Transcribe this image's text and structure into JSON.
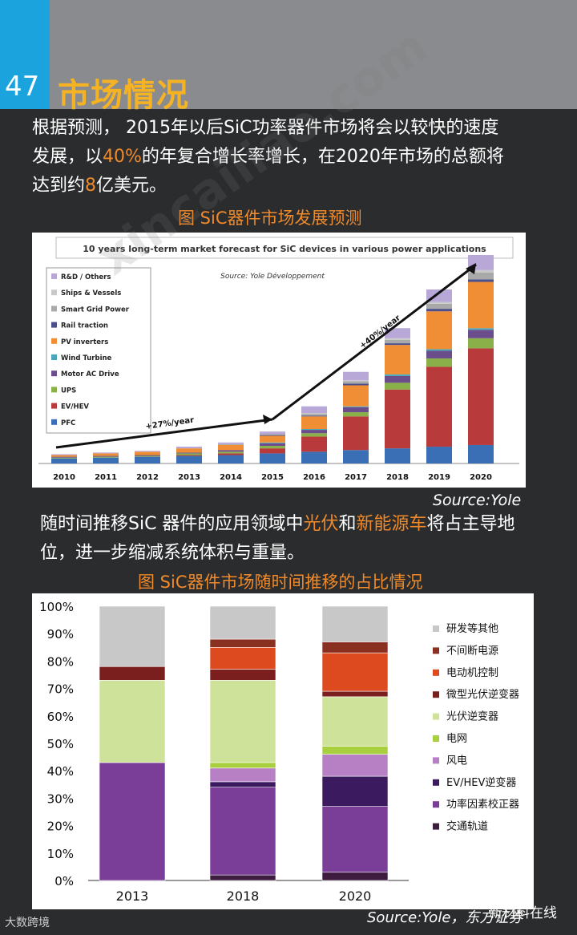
{
  "header": {
    "page_number": "47",
    "title": "市场情况"
  },
  "para1": {
    "line1": "根据预测， 2015年以后SiC功率器件市场将会以较快的速度",
    "line2_a": "发展，以",
    "line2_hl": "40%",
    "line2_b": "的年复合增长率增长，在2020年市场的总额将",
    "line3_a": "达到约",
    "line3_hl": "8",
    "line3_b": "亿美元。"
  },
  "caption1": "图 SiC器件市场发展预测",
  "source1": "Source:Yole",
  "para2": {
    "line1_a": "随时间推移SiC 器件的应用领域中",
    "line1_hl1": "光伏",
    "line1_mid": "和",
    "line1_hl2": "新能源车",
    "line1_b": "将占主导地",
    "line2": "位，进一步缩减系统体积与重量。"
  },
  "caption2": "图 SiC器件市场随时间推移的占比情况",
  "source2": "Source:Yole，东方证券",
  "footer": {
    "left": "大数跨境",
    "right": "新材料在线"
  },
  "watermark": "xincailiao.com",
  "chart_data": [
    {
      "type": "bar",
      "title": "10 years long-term market forecast for SiC devices in various power applications",
      "subtitle": "Source: Yole Développement",
      "categories": [
        "2010",
        "2011",
        "2012",
        "2013",
        "2014",
        "2015",
        "2016",
        "2017",
        "2018",
        "2019",
        "2020"
      ],
      "legend": [
        "R&D / Others",
        "Ships & Vessels",
        "Smart Grid Power",
        "Rail traction",
        "PV inverters",
        "Wind Turbine",
        "Motor AC Drive",
        "UPS",
        "EV/HEV",
        "PFC"
      ],
      "colors": [
        "#b8a8d8",
        "#c9c9c9",
        "#a9a9a9",
        "#4b4f8a",
        "#ef8e35",
        "#4aa6b8",
        "#6b4d8c",
        "#8ab04a",
        "#b83a3a",
        "#3b6fb5"
      ],
      "annotations": [
        "+27%/year",
        "+40%/year"
      ],
      "series": [
        {
          "name": "PFC",
          "values": [
            6,
            7,
            8,
            9,
            10,
            12,
            14,
            16,
            18,
            20,
            22
          ]
        },
        {
          "name": "EV/HEV",
          "values": [
            0,
            0,
            0,
            1,
            2,
            6,
            18,
            40,
            70,
            95,
            115
          ]
        },
        {
          "name": "UPS",
          "values": [
            1,
            1,
            1,
            2,
            2,
            3,
            4,
            5,
            8,
            10,
            12
          ]
        },
        {
          "name": "Motor AC Drive",
          "values": [
            1,
            1,
            1,
            1,
            2,
            3,
            4,
            6,
            8,
            9,
            10
          ]
        },
        {
          "name": "Wind Turbine",
          "values": [
            0,
            0,
            0,
            0,
            0,
            1,
            1,
            1,
            2,
            2,
            2
          ]
        },
        {
          "name": "PV inverters",
          "values": [
            2,
            3,
            4,
            5,
            6,
            8,
            15,
            25,
            35,
            45,
            55
          ]
        },
        {
          "name": "Rail traction",
          "values": [
            0,
            0,
            0,
            0,
            0,
            1,
            1,
            2,
            2,
            3,
            3
          ]
        },
        {
          "name": "Smart Grid Power",
          "values": [
            0,
            0,
            0,
            0,
            1,
            1,
            2,
            3,
            4,
            6,
            8
          ]
        },
        {
          "name": "Ships & Vessels",
          "values": [
            0,
            0,
            0,
            0,
            0,
            0,
            1,
            1,
            2,
            2,
            3
          ]
        },
        {
          "name": "R&D / Others",
          "values": [
            1,
            1,
            1,
            2,
            2,
            3,
            8,
            10,
            12,
            15,
            18
          ]
        }
      ]
    },
    {
      "type": "bar",
      "title": "图 SiC器件市场随时间推移的占比情况",
      "categories": [
        "2013",
        "2018",
        "2020"
      ],
      "yticks": [
        "0%",
        "10%",
        "20%",
        "30%",
        "40%",
        "50%",
        "60%",
        "70%",
        "80%",
        "90%",
        "100%"
      ],
      "ylim": [
        0,
        100
      ],
      "series": [
        {
          "name": "交通轨道",
          "color": "#3d1c3f",
          "values": [
            0,
            2,
            3
          ]
        },
        {
          "name": "功率因素校正器",
          "color": "#7a3d98",
          "values": [
            43,
            32,
            24
          ]
        },
        {
          "name": "EV/HEV逆变器",
          "color": "#3b1a5f",
          "values": [
            0,
            2,
            11
          ]
        },
        {
          "name": "风电",
          "color": "#b77fc4",
          "values": [
            0,
            5,
            8
          ]
        },
        {
          "name": "电网",
          "color": "#a7cf3e",
          "values": [
            0,
            2,
            3
          ]
        },
        {
          "name": "光伏逆变器",
          "color": "#cfe29a",
          "values": [
            30,
            30,
            18
          ]
        },
        {
          "name": "微型光伏逆变器",
          "color": "#7a1e1e",
          "values": [
            5,
            4,
            2
          ]
        },
        {
          "name": "电动机控制",
          "color": "#dd4a1f",
          "values": [
            0,
            8,
            14
          ]
        },
        {
          "name": "不间断电源",
          "color": "#8a3020",
          "values": [
            0,
            3,
            4
          ]
        },
        {
          "name": "研发等其他",
          "color": "#c8c8c8",
          "values": [
            22,
            12,
            13
          ]
        }
      ],
      "legend": [
        "研发等其他",
        "不间断电源",
        "电动机控制",
        "微型光伏逆变器",
        "光伏逆变器",
        "电网",
        "风电",
        "EV/HEV逆变器",
        "功率因素校正器",
        "交通轨道"
      ]
    }
  ]
}
